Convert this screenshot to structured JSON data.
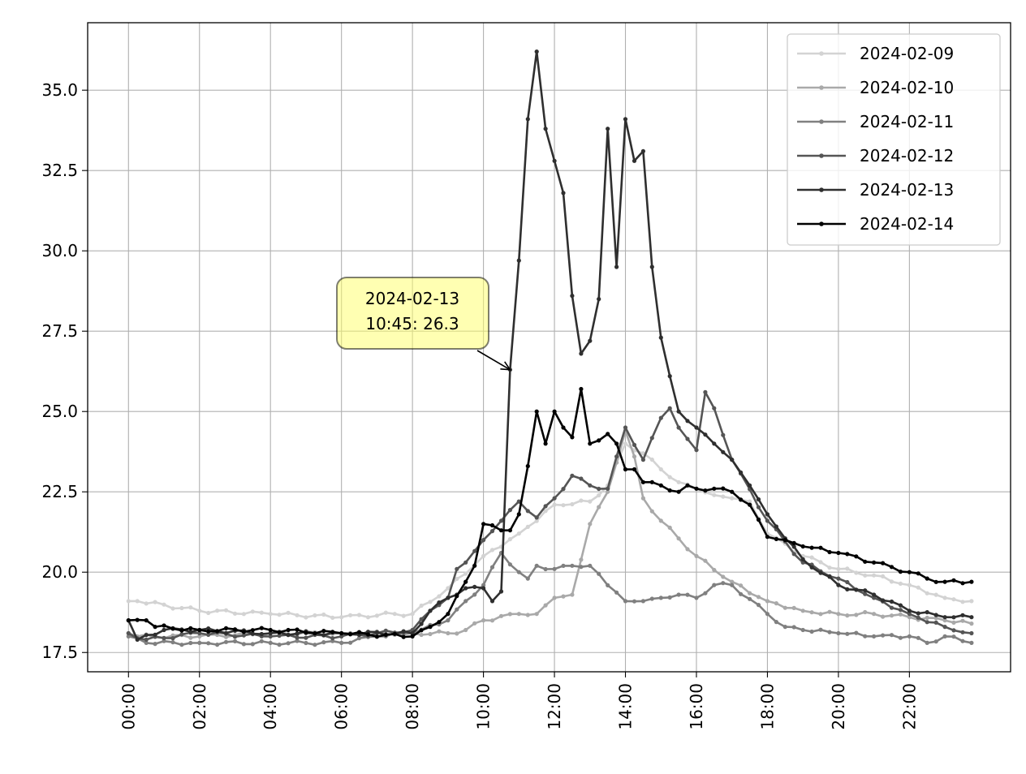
{
  "chart_data": {
    "type": "line",
    "title": "",
    "xlabel": "",
    "ylabel": "",
    "x_ticks": [
      "00:00",
      "02:00",
      "04:00",
      "06:00",
      "08:00",
      "10:00",
      "12:00",
      "14:00",
      "16:00",
      "18:00",
      "20:00",
      "22:00"
    ],
    "y_ticks": [
      "17.5",
      "20.0",
      "22.5",
      "25.0",
      "27.5",
      "30.0",
      "32.5",
      "35.0"
    ],
    "xlim_hours": [
      -1.15,
      24.85
    ],
    "ylim": [
      16.9,
      37.1
    ],
    "x_unit": "time of day, sampled every 15 minutes (96 points per day)",
    "grid": true,
    "legend_position": "top-right",
    "series": [
      {
        "name": "2024-02-09",
        "color": "#d3d3d3",
        "keypoints": [
          [
            0,
            19.1
          ],
          [
            0.25,
            19.1
          ],
          [
            2,
            18.8
          ],
          [
            4,
            18.7
          ],
          [
            6,
            18.6
          ],
          [
            7.5,
            18.7
          ],
          [
            8,
            18.7
          ],
          [
            9,
            19.5
          ],
          [
            10,
            20.5
          ],
          [
            11,
            21.2
          ],
          [
            12,
            22.1
          ],
          [
            13,
            22.2
          ],
          [
            13.5,
            22.7
          ],
          [
            14,
            24.0
          ],
          [
            14.5,
            23.7
          ],
          [
            15,
            23.2
          ],
          [
            15.5,
            22.8
          ],
          [
            16,
            22.6
          ],
          [
            16.5,
            22.4
          ],
          [
            17,
            22.3
          ],
          [
            17.5,
            22.2
          ],
          [
            18,
            21.2
          ],
          [
            19,
            20.5
          ],
          [
            20,
            20.1
          ],
          [
            21,
            19.9
          ],
          [
            22,
            19.6
          ],
          [
            23,
            19.2
          ],
          [
            23.75,
            19.1
          ]
        ]
      },
      {
        "name": "2024-02-10",
        "color": "#a9a9a9",
        "keypoints": [
          [
            0,
            18.1
          ],
          [
            0.25,
            18.0
          ],
          [
            2,
            18.0
          ],
          [
            4,
            18.1
          ],
          [
            6,
            18.1
          ],
          [
            8,
            18.1
          ],
          [
            9,
            18.1
          ],
          [
            9.5,
            18.2
          ],
          [
            10,
            18.5
          ],
          [
            11,
            18.7
          ],
          [
            11.5,
            18.7
          ],
          [
            12,
            19.2
          ],
          [
            12.5,
            19.3
          ],
          [
            13,
            21.5
          ],
          [
            13.5,
            22.5
          ],
          [
            14,
            24.4
          ],
          [
            14.25,
            23.6
          ],
          [
            14.5,
            22.3
          ],
          [
            15,
            21.6
          ],
          [
            16,
            20.5
          ],
          [
            17,
            19.7
          ],
          [
            18,
            19.1
          ],
          [
            19,
            18.8
          ],
          [
            20,
            18.7
          ],
          [
            21,
            18.7
          ],
          [
            22,
            18.6
          ],
          [
            23,
            18.5
          ],
          [
            23.75,
            18.4
          ]
        ]
      },
      {
        "name": "2024-02-11",
        "color": "#808080",
        "keypoints": [
          [
            0,
            18.0
          ],
          [
            0.5,
            17.8
          ],
          [
            2,
            17.8
          ],
          [
            4,
            17.8
          ],
          [
            6,
            17.8
          ],
          [
            7,
            18.0
          ],
          [
            8,
            18.1
          ],
          [
            9,
            18.5
          ],
          [
            9.5,
            19.1
          ],
          [
            10,
            19.6
          ],
          [
            10.5,
            20.6
          ],
          [
            11,
            20.0
          ],
          [
            11.25,
            19.8
          ],
          [
            11.5,
            20.2
          ],
          [
            12,
            20.1
          ],
          [
            12.5,
            20.2
          ],
          [
            13,
            20.2
          ],
          [
            14,
            19.1
          ],
          [
            14.5,
            19.1
          ],
          [
            15,
            19.2
          ],
          [
            15.5,
            19.3
          ],
          [
            16,
            19.2
          ],
          [
            16.5,
            19.6
          ],
          [
            17,
            19.6
          ],
          [
            18,
            18.7
          ],
          [
            18.5,
            18.3
          ],
          [
            19,
            18.2
          ],
          [
            20,
            18.1
          ],
          [
            21,
            18.0
          ],
          [
            22,
            18.0
          ],
          [
            22.5,
            17.8
          ],
          [
            23,
            18.0
          ],
          [
            23.75,
            17.8
          ]
        ]
      },
      {
        "name": "2024-02-12",
        "color": "#555555",
        "keypoints": [
          [
            0,
            18.1
          ],
          [
            0.5,
            17.9
          ],
          [
            2,
            18.1
          ],
          [
            4,
            18.0
          ],
          [
            6,
            18.0
          ],
          [
            7,
            18.1
          ],
          [
            8,
            18.2
          ],
          [
            8.5,
            18.8
          ],
          [
            9,
            19.2
          ],
          [
            9.25,
            20.1
          ],
          [
            9.5,
            20.3
          ],
          [
            10,
            21.0
          ],
          [
            10.5,
            21.6
          ],
          [
            11,
            22.2
          ],
          [
            11.5,
            21.7
          ],
          [
            12,
            22.3
          ],
          [
            12.5,
            23.0
          ],
          [
            13,
            22.7
          ],
          [
            13.5,
            22.6
          ],
          [
            14,
            24.5
          ],
          [
            14.5,
            23.5
          ],
          [
            15,
            24.8
          ],
          [
            15.25,
            25.1
          ],
          [
            15.5,
            24.5
          ],
          [
            16,
            23.8
          ],
          [
            16.25,
            25.6
          ],
          [
            16.5,
            25.1
          ],
          [
            17,
            23.5
          ],
          [
            18,
            21.6
          ],
          [
            19,
            20.3
          ],
          [
            20,
            19.8
          ],
          [
            21,
            19.2
          ],
          [
            22,
            18.7
          ],
          [
            23,
            18.3
          ],
          [
            23.75,
            18.1
          ]
        ]
      },
      {
        "name": "2024-02-13",
        "color": "#2f2f2f",
        "keypoints": [
          [
            0,
            18.5
          ],
          [
            0.25,
            17.9
          ],
          [
            1,
            18.2
          ],
          [
            2,
            18.2
          ],
          [
            4,
            18.1
          ],
          [
            6,
            18.1
          ],
          [
            8,
            18.1
          ],
          [
            8.5,
            18.8
          ],
          [
            9,
            19.2
          ],
          [
            9.5,
            19.5
          ],
          [
            10,
            19.5
          ],
          [
            10.25,
            19.1
          ],
          [
            10.5,
            19.4
          ],
          [
            10.75,
            26.3
          ],
          [
            11,
            29.7
          ],
          [
            11.25,
            34.1
          ],
          [
            11.5,
            36.2
          ],
          [
            11.75,
            33.8
          ],
          [
            12,
            32.8
          ],
          [
            12.25,
            31.8
          ],
          [
            12.5,
            28.6
          ],
          [
            12.75,
            26.8
          ],
          [
            13,
            27.2
          ],
          [
            13.25,
            28.5
          ],
          [
            13.5,
            33.8
          ],
          [
            13.75,
            29.5
          ],
          [
            14,
            34.1
          ],
          [
            14.25,
            32.8
          ],
          [
            14.5,
            33.1
          ],
          [
            14.75,
            29.5
          ],
          [
            15,
            27.3
          ],
          [
            15.25,
            26.1
          ],
          [
            15.5,
            25.0
          ],
          [
            16,
            24.5
          ],
          [
            16.5,
            24.0
          ],
          [
            17,
            23.5
          ],
          [
            17.5,
            22.7
          ],
          [
            18,
            21.8
          ],
          [
            19,
            20.4
          ],
          [
            20,
            19.6
          ],
          [
            21,
            19.3
          ],
          [
            22,
            18.8
          ],
          [
            23,
            18.6
          ],
          [
            23.75,
            18.6
          ]
        ]
      },
      {
        "name": "2024-02-14",
        "color": "#000000",
        "keypoints": [
          [
            0,
            18.5
          ],
          [
            0.5,
            18.5
          ],
          [
            0.75,
            18.3
          ],
          [
            2,
            18.2
          ],
          [
            4,
            18.2
          ],
          [
            6,
            18.1
          ],
          [
            8,
            18.0
          ],
          [
            8.5,
            18.3
          ],
          [
            9,
            18.7
          ],
          [
            9.5,
            19.7
          ],
          [
            9.75,
            20.2
          ],
          [
            10,
            21.5
          ],
          [
            10.5,
            21.3
          ],
          [
            10.75,
            21.3
          ],
          [
            11,
            21.8
          ],
          [
            11.25,
            23.3
          ],
          [
            11.5,
            25.0
          ],
          [
            11.75,
            24.0
          ],
          [
            12,
            25.0
          ],
          [
            12.25,
            24.5
          ],
          [
            12.5,
            24.2
          ],
          [
            12.75,
            25.7
          ],
          [
            13,
            24.0
          ],
          [
            13.25,
            24.1
          ],
          [
            13.5,
            24.3
          ],
          [
            13.75,
            24.0
          ],
          [
            14,
            23.2
          ],
          [
            14.25,
            23.2
          ],
          [
            14.5,
            22.8
          ],
          [
            15,
            22.7
          ],
          [
            15.5,
            22.5
          ],
          [
            15.75,
            22.7
          ],
          [
            16,
            22.6
          ],
          [
            16.5,
            22.6
          ],
          [
            17,
            22.5
          ],
          [
            17.5,
            22.1
          ],
          [
            18,
            21.1
          ],
          [
            18.5,
            21.0
          ],
          [
            19,
            20.8
          ],
          [
            20,
            20.6
          ],
          [
            21,
            20.3
          ],
          [
            22,
            20.0
          ],
          [
            22.5,
            19.8
          ],
          [
            23,
            19.7
          ],
          [
            23.75,
            19.7
          ]
        ]
      }
    ],
    "annotation": {
      "text_line1": "2024-02-13",
      "text_line2": "10:45: 26.3",
      "point_hour": 10.75,
      "point_value": 26.3,
      "box_color": "#ffff66"
    }
  }
}
